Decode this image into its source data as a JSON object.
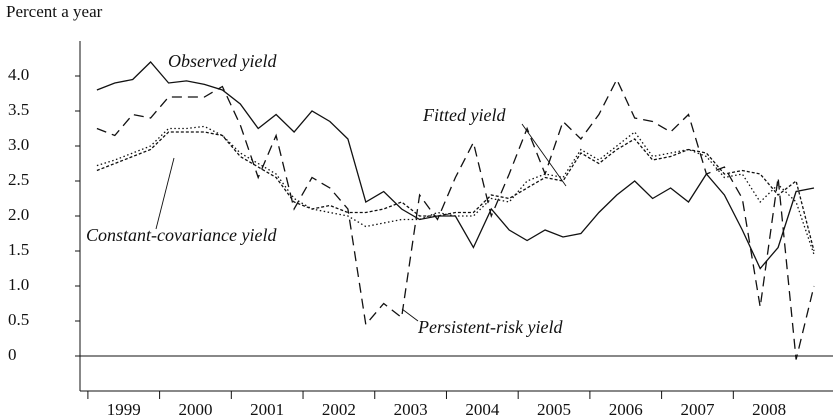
{
  "chart_data": {
    "type": "line",
    "ylabel": "Percent a year",
    "x": [
      1999.125,
      1999.375,
      1999.625,
      1999.875,
      2000.125,
      2000.375,
      2000.625,
      2000.875,
      2001.125,
      2001.375,
      2001.625,
      2001.875,
      2002.125,
      2002.375,
      2002.625,
      2002.875,
      2003.125,
      2003.375,
      2003.625,
      2003.875,
      2004.125,
      2004.375,
      2004.625,
      2004.875,
      2005.125,
      2005.375,
      2005.625,
      2005.875,
      2006.125,
      2006.375,
      2006.625,
      2006.875,
      2007.125,
      2007.375,
      2007.625,
      2007.875,
      2008.125,
      2008.375,
      2008.625,
      2008.875,
      2009.125
    ],
    "series": [
      {
        "name": "Observed yield",
        "color": "#111111",
        "dash": "none",
        "values": [
          3.8,
          3.9,
          3.95,
          4.2,
          3.9,
          3.93,
          3.88,
          3.8,
          3.6,
          3.25,
          3.45,
          3.2,
          3.5,
          3.35,
          3.1,
          2.2,
          2.35,
          2.1,
          1.95,
          2.0,
          2.0,
          1.55,
          2.1,
          1.8,
          1.65,
          1.8,
          1.7,
          1.75,
          2.05,
          2.3,
          2.5,
          2.25,
          2.4,
          2.2,
          2.6,
          2.3,
          1.8,
          1.25,
          1.55,
          2.35,
          2.4
        ]
      },
      {
        "name": "Persistent-risk yield",
        "color": "#111111",
        "dash": "10,6",
        "values": [
          3.25,
          3.15,
          3.45,
          3.4,
          3.7,
          3.7,
          3.7,
          3.85,
          3.3,
          2.55,
          3.15,
          2.1,
          2.55,
          2.4,
          2.1,
          0.45,
          0.75,
          0.55,
          2.3,
          1.95,
          2.55,
          3.05,
          2.0,
          2.6,
          3.25,
          2.6,
          3.35,
          3.1,
          3.45,
          3.95,
          3.4,
          3.35,
          3.2,
          3.45,
          2.6,
          2.7,
          2.25,
          0.7,
          2.55,
          -0.05,
          1.0
        ]
      },
      {
        "name": "Fitted yield",
        "color": "#111111",
        "dash": "3,2",
        "values": [
          2.65,
          2.75,
          2.85,
          2.95,
          3.2,
          3.2,
          3.2,
          3.15,
          2.85,
          2.7,
          2.55,
          2.2,
          2.1,
          2.15,
          2.05,
          2.05,
          2.1,
          2.2,
          2.0,
          2.0,
          2.05,
          2.05,
          2.3,
          2.25,
          2.4,
          2.55,
          2.5,
          2.9,
          2.75,
          2.95,
          3.1,
          2.8,
          2.85,
          2.95,
          2.9,
          2.6,
          2.65,
          2.6,
          2.3,
          2.5,
          1.5
        ]
      },
      {
        "name": "Constant-covariance yield",
        "color": "#111111",
        "dash": "1.5,2.5",
        "values": [
          2.72,
          2.8,
          2.9,
          3.0,
          3.25,
          3.25,
          3.28,
          3.15,
          2.9,
          2.75,
          2.6,
          2.25,
          2.1,
          2.05,
          2.0,
          1.85,
          1.9,
          1.95,
          1.95,
          2.05,
          2.0,
          2.0,
          2.25,
          2.2,
          2.5,
          2.6,
          2.55,
          2.95,
          2.8,
          3.0,
          3.2,
          2.85,
          2.9,
          2.95,
          2.85,
          2.55,
          2.6,
          2.2,
          2.45,
          2.2,
          1.45
        ]
      }
    ],
    "xlim": [
      1998.89,
      2009.39
    ],
    "xticks": [
      {
        "value": 1999,
        "label": "1999"
      },
      {
        "value": 2000,
        "label": "2000"
      },
      {
        "value": 2001,
        "label": "2001"
      },
      {
        "value": 2002,
        "label": "2002"
      },
      {
        "value": 2003,
        "label": "2003"
      },
      {
        "value": 2004,
        "label": "2004"
      },
      {
        "value": 2005,
        "label": "2005"
      },
      {
        "value": 2006,
        "label": "2006"
      },
      {
        "value": 2007,
        "label": "2007"
      },
      {
        "value": 2008,
        "label": "2008"
      }
    ],
    "ylim": [
      -0.5,
      4.5
    ],
    "yticks": [
      0,
      {
        "value": 0.5,
        "label": "0.5"
      },
      {
        "value": 1,
        "label": "1.0"
      },
      {
        "value": 1.5,
        "label": "1.5"
      },
      {
        "value": 2,
        "label": "2.0"
      },
      {
        "value": 2.5,
        "label": "2.5"
      },
      {
        "value": 3,
        "label": "3.0"
      },
      {
        "value": 3.5,
        "label": "3.5"
      },
      {
        "value": 4,
        "label": "4.0"
      }
    ],
    "zero_line": true,
    "grid": false
  }
}
